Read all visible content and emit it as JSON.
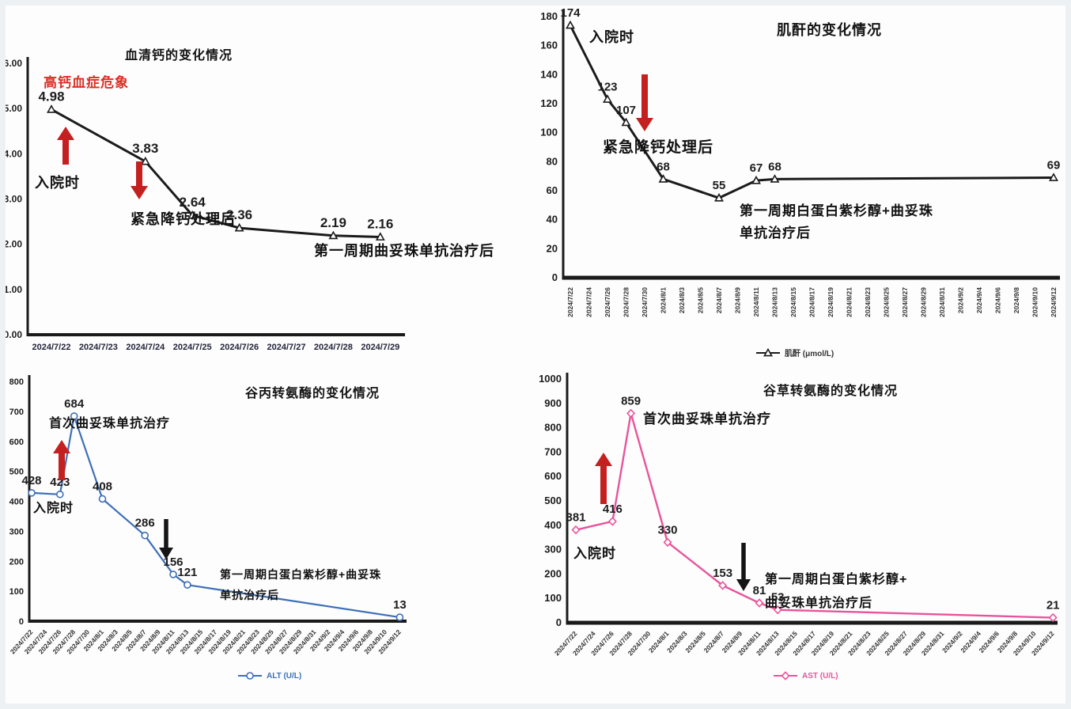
{
  "page": {
    "background": "#fdfdfd",
    "frame_color": "#eef1f3"
  },
  "chart_data": [
    {
      "id": "serum-calcium",
      "type": "line",
      "title": "血清钙的变化情况",
      "series_name": "血清钙",
      "line_color": "#1b1b1b",
      "marker": "triangle",
      "legend": null,
      "categories": [
        "2024/7/22",
        "2024/7/23",
        "2024/7/24",
        "2024/7/25",
        "2024/7/26",
        "2024/7/27",
        "2024/7/28",
        "2024/7/29"
      ],
      "points": [
        {
          "date": "2024/7/22",
          "value": 4.98,
          "label": "4.98"
        },
        {
          "date": "2024/7/24",
          "value": 3.83,
          "label": "3.83"
        },
        {
          "date": "2024/7/25",
          "value": 2.64,
          "label": "2.64"
        },
        {
          "date": "2024/7/26",
          "value": 2.36,
          "label": "2.36"
        },
        {
          "date": "2024/7/28",
          "value": 2.19,
          "label": "2.19"
        },
        {
          "date": "2024/7/29",
          "value": 2.16,
          "label": "2.16"
        }
      ],
      "ylim": [
        0,
        6
      ],
      "ytick_step": 1,
      "ytick_labels": [
        "0.00",
        "1.00",
        "2.00",
        "3.00",
        "4.00",
        "5.00",
        "6.00"
      ],
      "grid": false,
      "annotations": [
        {
          "text": "高钙血症危象",
          "x": 55,
          "y": 110,
          "size": 17,
          "color": "#d93025"
        },
        {
          "text": "入院时",
          "x": 44,
          "y": 237,
          "size": 18,
          "color": "#111111"
        },
        {
          "text": "紧急降钙处理后",
          "x": 165,
          "y": 283,
          "size": 18,
          "color": "#111111"
        },
        {
          "text": "第一周期曲妥珠单抗治疗后",
          "x": 397,
          "y": 323,
          "size": 18,
          "color": "#111111"
        }
      ],
      "arrows": [
        {
          "dir": "up",
          "color": "#c42020",
          "x": 83,
          "y1": 160,
          "y2": 208
        },
        {
          "dir": "down",
          "color": "#c42020",
          "x": 176,
          "y1": 204,
          "y2": 252
        }
      ]
    },
    {
      "id": "creatinine",
      "type": "line",
      "title": "肌酐的变化情况",
      "series_name": "肌酐",
      "line_color": "#1b1b1b",
      "marker": "triangle",
      "legend": "肌酐 (μmol/L)",
      "legend_color": "#333333",
      "categories": [
        "2024/7/22",
        "2024/7/24",
        "2024/7/26",
        "2024/7/28",
        "2024/7/30",
        "2024/8/1",
        "2024/8/3",
        "2024/8/5",
        "2024/8/7",
        "2024/8/9",
        "2024/8/11",
        "2024/8/13",
        "2024/8/15",
        "2024/8/17",
        "2024/8/19",
        "2024/8/21",
        "2024/8/23",
        "2024/8/25",
        "2024/8/27",
        "2024/8/29",
        "2024/8/31",
        "2024/9/2",
        "2024/9/4",
        "2024/9/6",
        "2024/9/8",
        "2024/9/10",
        "2024/9/12"
      ],
      "points": [
        {
          "date": "2024/7/22",
          "value": 174,
          "label": "174"
        },
        {
          "date": "2024/7/26",
          "value": 123,
          "label": "123"
        },
        {
          "date": "2024/7/28",
          "value": 107,
          "label": "107"
        },
        {
          "date": "2024/8/1",
          "value": 68,
          "label": "68"
        },
        {
          "date": "2024/8/7",
          "value": 55,
          "label": "55"
        },
        {
          "date": "2024/8/11",
          "value": 67,
          "label": "67"
        },
        {
          "date": "2024/8/13",
          "value": 68,
          "label": "68"
        },
        {
          "date": "2024/9/12",
          "value": 69,
          "label": "69"
        }
      ],
      "ylim": [
        0,
        180
      ],
      "ytick_step": 20,
      "ytick_labels": [
        "0",
        "20",
        "40",
        "60",
        "80",
        "100",
        "120",
        "140",
        "160",
        "180"
      ],
      "grid": false,
      "annotations": [
        {
          "text": "入院时",
          "x": 68,
          "y": 53,
          "size": 18,
          "color": "#111111"
        },
        {
          "text": "紧急降钙处理后",
          "x": 85,
          "y": 192,
          "size": 19,
          "color": "#111111"
        },
        {
          "text": "第一周期白蛋白紫杉醇+曲妥珠",
          "x": 258,
          "y": 272,
          "size": 17,
          "color": "#111111"
        },
        {
          "text": "单抗治疗后",
          "x": 258,
          "y": 300,
          "size": 17,
          "color": "#111111"
        }
      ],
      "arrows": [
        {
          "dir": "down",
          "color": "#c42020",
          "x": 138,
          "y1": 94,
          "y2": 166
        }
      ]
    },
    {
      "id": "alt",
      "type": "line",
      "title": "谷丙转氨酶的变化情况",
      "series_name": "ALT",
      "line_color": "#3e6fb7",
      "marker": "circle",
      "legend": "ALT (U/L)",
      "legend_color": "#3e6fb7",
      "categories": [
        "2024/7/22",
        "2024/7/24",
        "2024/7/26",
        "2024/7/28",
        "2024/7/30",
        "2024/8/1",
        "2024/8/3",
        "2024/8/5",
        "2024/8/7",
        "2024/8/9",
        "2024/8/11",
        "2024/8/13",
        "2024/8/15",
        "2024/8/17",
        "2024/8/19",
        "2024/8/21",
        "2024/8/23",
        "2024/8/25",
        "2024/8/27",
        "2024/8/29",
        "2024/8/31",
        "2024/9/2",
        "2024/9/4",
        "2024/9/6",
        "2024/9/8",
        "2024/9/10",
        "2024/9/12"
      ],
      "points": [
        {
          "date": "2024/7/22",
          "value": 428,
          "label": "428"
        },
        {
          "date": "2024/7/26",
          "value": 423,
          "label": "423"
        },
        {
          "date": "2024/7/28",
          "value": 684,
          "label": "684"
        },
        {
          "date": "2024/8/1",
          "value": 408,
          "label": "408"
        },
        {
          "date": "2024/8/7",
          "value": 286,
          "label": "286"
        },
        {
          "date": "2024/8/11",
          "value": 156,
          "label": "156"
        },
        {
          "date": "2024/8/13",
          "value": 121,
          "label": "121"
        },
        {
          "date": "2024/9/12",
          "value": 13,
          "label": "13"
        }
      ],
      "ylim": [
        0,
        800
      ],
      "ytick_step": 100,
      "ytick_labels": [
        "0",
        "100",
        "200",
        "300",
        "400",
        "500",
        "600",
        "700",
        "800"
      ],
      "grid": false,
      "annotations": [
        {
          "text": "首次曲妥珠单抗治疗",
          "x": 62,
          "y": 80,
          "size": 16,
          "color": "#111111"
        },
        {
          "text": "入院时",
          "x": 42,
          "y": 187,
          "size": 16,
          "color": "#111111"
        },
        {
          "text": "第一周期白蛋白紫杉醇+曲妥珠",
          "x": 278,
          "y": 271,
          "size": 14,
          "color": "#111111"
        },
        {
          "text": "单抗治疗后",
          "x": 278,
          "y": 297,
          "size": 14,
          "color": "#111111"
        }
      ],
      "arrows": [
        {
          "dir": "up",
          "color": "#c42020",
          "x": 78,
          "y1": 96,
          "y2": 147
        },
        {
          "dir": "down",
          "color": "#151515",
          "x": 210,
          "y1": 196,
          "y2": 247
        }
      ]
    },
    {
      "id": "ast",
      "type": "line",
      "title": "谷草转氨酶的变化情况",
      "series_name": "AST",
      "line_color": "#e8549b",
      "marker": "diamond",
      "legend": "AST (U/L)",
      "legend_color": "#e8549b",
      "categories": [
        "2024/7/22",
        "2024/7/24",
        "2024/7/26",
        "2024/7/28",
        "2024/7/30",
        "2024/8/1",
        "2024/8/3",
        "2024/8/5",
        "2024/8/7",
        "2024/8/9",
        "2024/8/11",
        "2024/8/13",
        "2024/8/15",
        "2024/8/17",
        "2024/8/19",
        "2024/8/21",
        "2024/8/23",
        "2024/8/25",
        "2024/8/27",
        "2024/8/29",
        "2024/8/31",
        "2024/9/2",
        "2024/9/4",
        "2024/9/6",
        "2024/9/8",
        "2024/9/10",
        "2024/9/12"
      ],
      "points": [
        {
          "date": "2024/7/22",
          "value": 381,
          "label": "381"
        },
        {
          "date": "2024/7/26",
          "value": 416,
          "label": "416"
        },
        {
          "date": "2024/7/28",
          "value": 859,
          "label": "859"
        },
        {
          "date": "2024/8/1",
          "value": 330,
          "label": "330"
        },
        {
          "date": "2024/8/7",
          "value": 153,
          "label": "153"
        },
        {
          "date": "2024/8/11",
          "value": 81,
          "label": "81"
        },
        {
          "date": "2024/8/13",
          "value": 53,
          "label": "53"
        },
        {
          "date": "2024/9/12",
          "value": 21,
          "label": "21"
        }
      ],
      "ylim": [
        0,
        1000
      ],
      "ytick_step": 100,
      "ytick_labels": [
        "0",
        "100",
        "200",
        "300",
        "400",
        "500",
        "600",
        "700",
        "800",
        "900",
        "1000"
      ],
      "grid": false,
      "annotations": [
        {
          "text": "首次曲妥珠单抗治疗",
          "x": 136,
          "y": 75,
          "size": 17,
          "color": "#111111"
        },
        {
          "text": "入院时",
          "x": 48,
          "y": 245,
          "size": 17,
          "color": "#111111"
        },
        {
          "text": "第一周期白蛋白紫杉醇+",
          "x": 290,
          "y": 277,
          "size": 16,
          "color": "#111111"
        },
        {
          "text": "曲妥珠单抗治疗后",
          "x": 290,
          "y": 307,
          "size": 16,
          "color": "#111111"
        }
      ],
      "arrows": [
        {
          "dir": "up",
          "color": "#c42020",
          "x": 86,
          "y1": 112,
          "y2": 177
        },
        {
          "dir": "down",
          "color": "#151515",
          "x": 263,
          "y1": 226,
          "y2": 287
        }
      ]
    }
  ]
}
